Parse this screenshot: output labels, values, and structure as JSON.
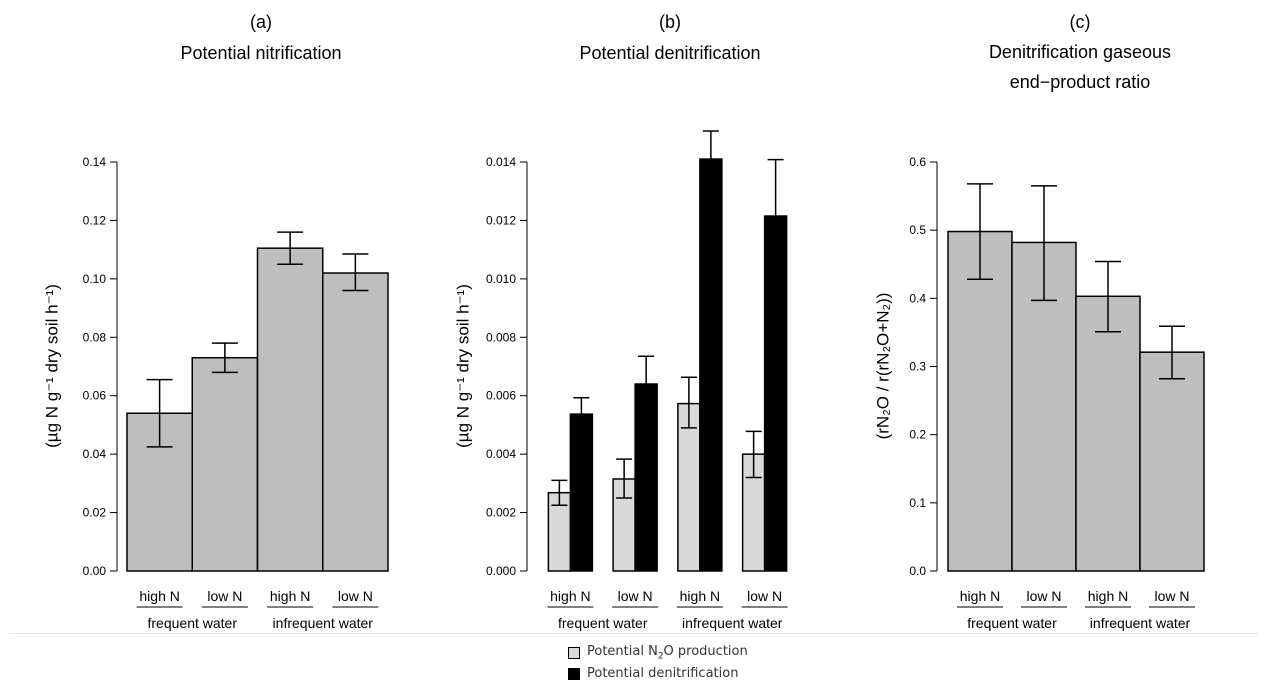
{
  "chart_data": [
    {
      "type": "bar",
      "title": [
        "(a)",
        "Potential nitrification"
      ],
      "ylabel": "(µg N g⁻¹ dry soil h⁻¹)",
      "ylim": [
        0,
        0.14
      ],
      "yticks": [
        "0.00",
        "0.02",
        "0.04",
        "0.06",
        "0.08",
        "0.10",
        "0.12",
        "0.14"
      ],
      "categories": [
        "high N",
        "low N",
        "high N",
        "low N"
      ],
      "groups": [
        "frequent water",
        "infrequent water"
      ],
      "series": [
        {
          "values": [
            0.054,
            0.073,
            0.1105,
            0.102
          ],
          "err_low": [
            0.0425,
            0.068,
            0.105,
            0.096
          ],
          "err_high": [
            0.0655,
            0.078,
            0.116,
            0.1085
          ],
          "color": "#bebebe"
        }
      ]
    },
    {
      "type": "bar",
      "title": [
        "(b)",
        "Potential denitrification"
      ],
      "ylabel": "(µg N g⁻¹ dry soil h⁻¹)",
      "ylim": [
        0,
        0.014
      ],
      "yticks": [
        "0.000",
        "0.002",
        "0.004",
        "0.006",
        "0.008",
        "0.010",
        "0.012",
        "0.014"
      ],
      "categories": [
        "high N",
        "low N",
        "high N",
        "low N"
      ],
      "groups": [
        "frequent water",
        "infrequent water"
      ],
      "series": [
        {
          "name": "Potential N₂O production",
          "values": [
            0.00268,
            0.00315,
            0.00573,
            0.004
          ],
          "err_low": [
            0.00225,
            0.0025,
            0.0049,
            0.0032
          ],
          "err_high": [
            0.0031,
            0.00383,
            0.00663,
            0.00478
          ],
          "color": "#d9d9d9"
        },
        {
          "name": "Potential denitrification",
          "values": [
            0.00537,
            0.0064,
            0.0141,
            0.01215
          ],
          "err_low": [
            0.00537,
            0.0064,
            0.0141,
            0.01215
          ],
          "err_high": [
            0.00593,
            0.00735,
            0.01506,
            0.01408
          ],
          "color": "#000000"
        }
      ]
    },
    {
      "type": "bar",
      "title": [
        "(c)",
        "Denitrification gaseous",
        "end−product ratio"
      ],
      "ylabel": "(rN₂O / r(rN₂O+N₂))",
      "ylim": [
        0,
        0.6
      ],
      "yticks": [
        "0.0",
        "0.1",
        "0.2",
        "0.3",
        "0.4",
        "0.5",
        "0.6"
      ],
      "categories": [
        "high N",
        "low N",
        "high N",
        "low N"
      ],
      "groups": [
        "frequent water",
        "infrequent water"
      ],
      "series": [
        {
          "values": [
            0.498,
            0.482,
            0.403,
            0.321
          ],
          "err_low": [
            0.428,
            0.397,
            0.351,
            0.282
          ],
          "err_high": [
            0.568,
            0.565,
            0.454,
            0.359
          ],
          "color": "#bebebe"
        }
      ]
    }
  ],
  "legend": {
    "items": [
      {
        "label_pre": "Potential N",
        "label_sub": "2",
        "label_post": "O production",
        "color": "#d9d9d9"
      },
      {
        "label_pre": "Potential denitrification",
        "label_sub": "",
        "label_post": "",
        "color": "#000000"
      }
    ]
  }
}
